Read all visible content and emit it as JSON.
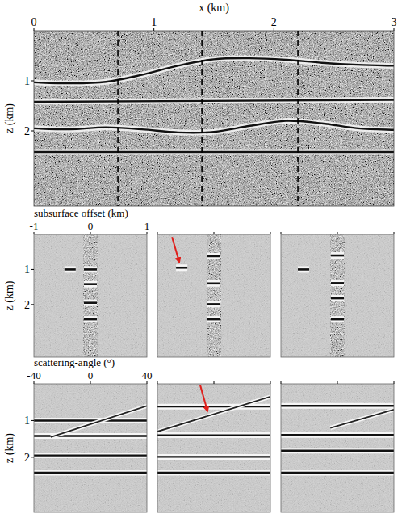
{
  "chart_data": [
    {
      "type": "image",
      "xlabel": "x (km)",
      "ylabel": "z (km)",
      "xlim": [
        0,
        3
      ],
      "ylim": [
        0,
        3.5
      ],
      "xticks": [
        0,
        1,
        2,
        3
      ],
      "yticks": [
        1,
        2
      ],
      "reflectors": [
        {
          "x": [
            0,
            0.3,
            0.6,
            0.9,
            1.2,
            1.5,
            1.8,
            2.1,
            2.4,
            2.7,
            3.0
          ],
          "z": [
            1.03,
            1.05,
            1.02,
            0.88,
            0.7,
            0.57,
            0.55,
            0.58,
            0.64,
            0.68,
            0.7
          ]
        },
        {
          "x": [
            0,
            3
          ],
          "z": [
            1.42,
            1.38
          ]
        },
        {
          "x": [
            0,
            0.3,
            0.6,
            0.9,
            1.2,
            1.5,
            1.8,
            2.1,
            2.4,
            2.7,
            3.0
          ],
          "z": [
            1.95,
            1.97,
            1.93,
            1.97,
            2.03,
            2.02,
            1.9,
            1.8,
            1.85,
            1.95,
            1.98
          ]
        },
        {
          "x": [
            0,
            3
          ],
          "z": [
            2.42,
            2.42
          ]
        }
      ],
      "gather_locations": [
        0.7,
        1.4,
        2.2
      ]
    },
    {
      "type": "offset_gathers",
      "xlabel": "subsurface offset (km)",
      "ylabel": "z (km)",
      "xlim": [
        -1,
        1
      ],
      "ylim": [
        0,
        3.5
      ],
      "xticks": [
        -1,
        0,
        1
      ],
      "yticks": [
        1,
        2
      ],
      "event_offset": 0,
      "panels": [
        {
          "events": [
            1.0,
            1.42,
            1.95,
            2.42
          ],
          "artifact": {
            "x": -0.36,
            "z": 1.0
          },
          "arrow": false
        },
        {
          "events": [
            0.62,
            1.4,
            1.99,
            2.42
          ],
          "artifact": {
            "x": -0.57,
            "z": 0.95
          },
          "arrow": true
        },
        {
          "events": [
            0.6,
            1.39,
            1.82,
            2.42
          ],
          "artifact": {
            "x": -0.6,
            "z": 1.0
          },
          "arrow": false
        }
      ]
    },
    {
      "type": "angle_gathers",
      "xlabel": "scattering-angle (°)",
      "ylabel": "z (km)",
      "xlim": [
        -40,
        40
      ],
      "ylim": [
        0,
        3.5
      ],
      "xticks": [
        -40,
        0,
        40
      ],
      "yticks": [
        1,
        2
      ],
      "panels": [
        {
          "events": [
            1.0,
            1.42,
            1.95,
            2.42
          ],
          "artifact": {
            "x": [
              -28,
              40
            ],
            "z": [
              1.45,
              0.6
            ]
          },
          "arrow": false
        },
        {
          "events": [
            0.62,
            1.4,
            1.99,
            2.42
          ],
          "artifact": {
            "x": [
              -40,
              40
            ],
            "z": [
              1.3,
              0.35
            ]
          },
          "arrow": true
        },
        {
          "events": [
            0.6,
            1.39,
            1.82,
            2.42
          ],
          "artifact": {
            "x": [
              -5,
              40
            ],
            "z": [
              1.2,
              0.7
            ]
          },
          "arrow": false
        }
      ]
    }
  ]
}
